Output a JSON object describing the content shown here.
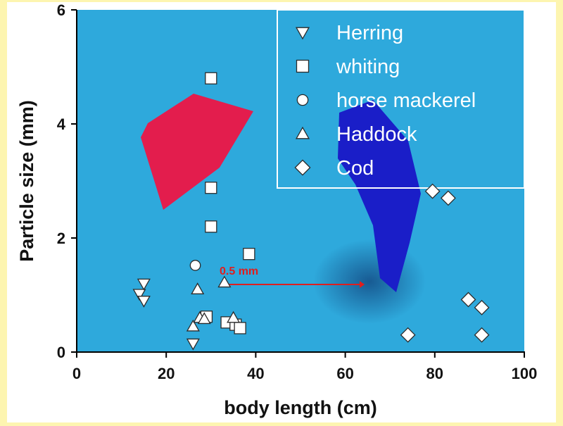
{
  "chart_data": {
    "type": "scatter",
    "title": "",
    "xlabel": "body length (cm)",
    "ylabel": "Particle size (mm)",
    "xlim": [
      0,
      100
    ],
    "ylim": [
      0,
      6
    ],
    "xticks": [
      "0",
      "20",
      "40",
      "60",
      "80",
      "100"
    ],
    "yticks": [
      "0",
      "2",
      "4",
      "6"
    ],
    "grid": false,
    "legend_position": "top-right",
    "marker_color": "#ffffff",
    "background_color": "#2ea9dc",
    "annotation": {
      "text": "0.5 mm",
      "color": "#e01e1e",
      "x_start": 34,
      "x_end": 63,
      "y": 1.2
    },
    "series": [
      {
        "name": "Herring",
        "marker": "triangle-down",
        "points": [
          [
            14,
            1.02
          ],
          [
            15,
            1.2
          ],
          [
            15,
            0.9
          ],
          [
            26,
            0.15
          ]
        ]
      },
      {
        "name": "whiting",
        "marker": "square",
        "points": [
          [
            30,
            4.8
          ],
          [
            30,
            2.88
          ],
          [
            30,
            2.2
          ],
          [
            38.5,
            1.72
          ],
          [
            29,
            0.62
          ],
          [
            33.5,
            0.52
          ],
          [
            35.5,
            0.48
          ],
          [
            36.5,
            0.42
          ]
        ]
      },
      {
        "name": "horse mackerel",
        "marker": "circle",
        "points": [
          [
            26.5,
            1.52
          ]
        ]
      },
      {
        "name": "Haddock",
        "marker": "triangle-up",
        "points": [
          [
            33,
            1.22
          ],
          [
            27,
            1.1
          ],
          [
            26,
            0.45
          ],
          [
            27.5,
            0.6
          ],
          [
            28.5,
            0.58
          ],
          [
            35,
            0.6
          ]
        ]
      },
      {
        "name": "Cod",
        "marker": "diamond",
        "points": [
          [
            79.5,
            2.82
          ],
          [
            83,
            2.7
          ],
          [
            87.5,
            0.92
          ],
          [
            90.5,
            0.78
          ],
          [
            74,
            0.3
          ],
          [
            90.5,
            0.3
          ]
        ]
      }
    ]
  }
}
